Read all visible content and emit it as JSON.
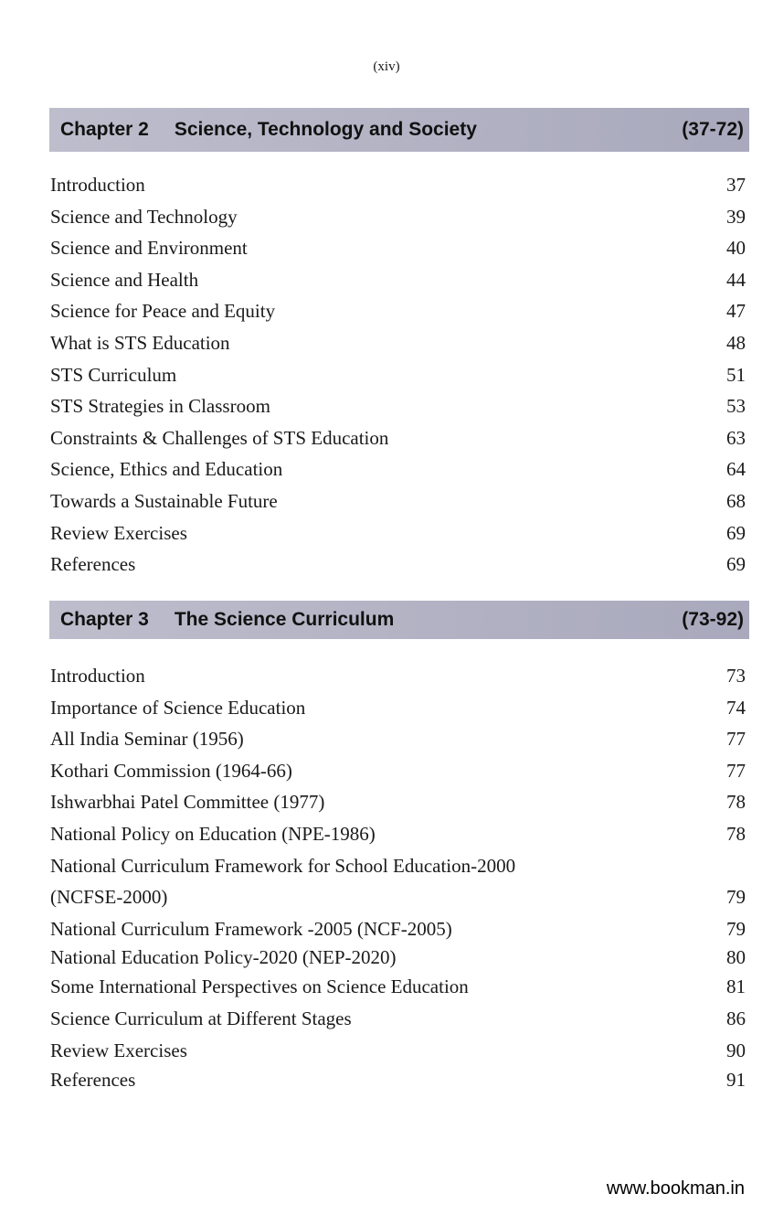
{
  "page_number": "(xiv)",
  "chapters": [
    {
      "label": "Chapter 2",
      "title": "Science, Technology and Society",
      "range": "(37-72)",
      "entries": [
        {
          "title": "Introduction",
          "page": "37"
        },
        {
          "title": "Science and Technology",
          "page": "39"
        },
        {
          "title": "Science and Environment",
          "page": "40"
        },
        {
          "title": "Science and Health",
          "page": "44"
        },
        {
          "title": "Science for Peace and Equity",
          "page": "47"
        },
        {
          "title": "What is STS Education",
          "page": "48"
        },
        {
          "title": "STS Curriculum",
          "page": "51"
        },
        {
          "title": "STS Strategies in Classroom",
          "page": "53"
        },
        {
          "title": "Constraints & Challenges of STS Education",
          "page": "63"
        },
        {
          "title": "Science, Ethics and Education",
          "page": "64"
        },
        {
          "title": "Towards a Sustainable Future",
          "page": "68"
        },
        {
          "title": "Review Exercises",
          "page": "69"
        },
        {
          "title": "References",
          "page": "69"
        }
      ]
    },
    {
      "label": "Chapter 3",
      "title": "The Science Curriculum",
      "range": "(73-92)",
      "entries": [
        {
          "title": "Introduction",
          "page": "73"
        },
        {
          "title": "Importance of Science Education",
          "page": "74"
        },
        {
          "title": "All India Seminar (1956)",
          "page": "77"
        },
        {
          "title": "Kothari Commission (1964-66)",
          "page": "77"
        },
        {
          "title": "Ishwarbhai Patel Committee (1977)",
          "page": "78"
        },
        {
          "title": "National Policy on Education (NPE-1986)",
          "page": "78"
        },
        {
          "title": "National Curriculum Framework for School Education-2000",
          "page": ""
        },
        {
          "title": "(NCFSE-2000)",
          "page": "79"
        },
        {
          "title": "National Curriculum Framework -2005 (NCF-2005)",
          "page": "79"
        },
        {
          "title": "National Education Policy-2020 (NEP-2020)",
          "page": "80"
        },
        {
          "title": "Some International Perspectives on Science Education",
          "page": "81"
        },
        {
          "title": "Science Curriculum at Different Stages",
          "page": "86"
        },
        {
          "title": "Review Exercises",
          "page": "90"
        },
        {
          "title": "References",
          "page": "91"
        }
      ]
    }
  ],
  "footer": "www.bookman.in",
  "colors": {
    "chapter_bar": "#b1b1c3"
  }
}
